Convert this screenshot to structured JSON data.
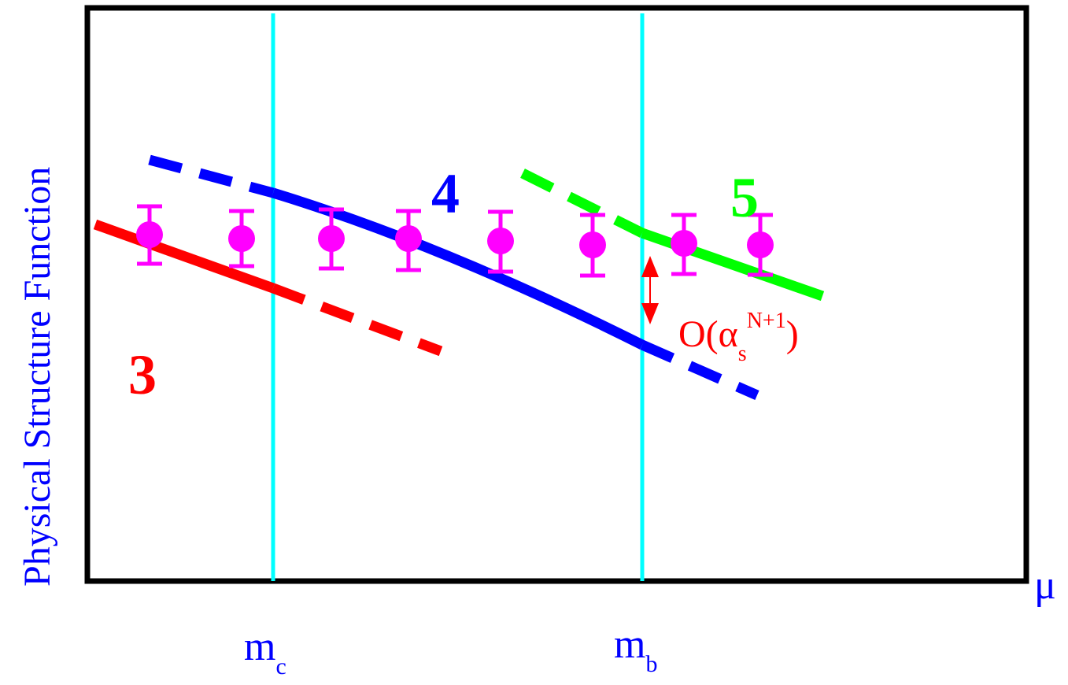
{
  "diagram": {
    "ylabel": "Physical Structure Function",
    "xlabel": "μ",
    "thresholds": [
      {
        "main": "m",
        "sub": "c"
      },
      {
        "main": "m",
        "sub": "b"
      }
    ],
    "scheme_labels": [
      {
        "text": "3",
        "color": "#ff0000"
      },
      {
        "text": "4",
        "color": "#0000ff"
      },
      {
        "text": "5",
        "color": "#00ff00"
      }
    ],
    "annotation": {
      "prefix": "O(α",
      "sub": "s",
      "sup": "N+1",
      "suffix": ")"
    },
    "colors": {
      "frame": "#000000",
      "thresholds": "#00ffff",
      "data_points": "#ff00ff",
      "nf3": "#ff0000",
      "nf4": "#0000ff",
      "nf5": "#00ff00",
      "ylabel": "#0000ff",
      "xlabel": "#0000ff",
      "annotation": "#ff0000"
    },
    "data_point_count": 8
  }
}
